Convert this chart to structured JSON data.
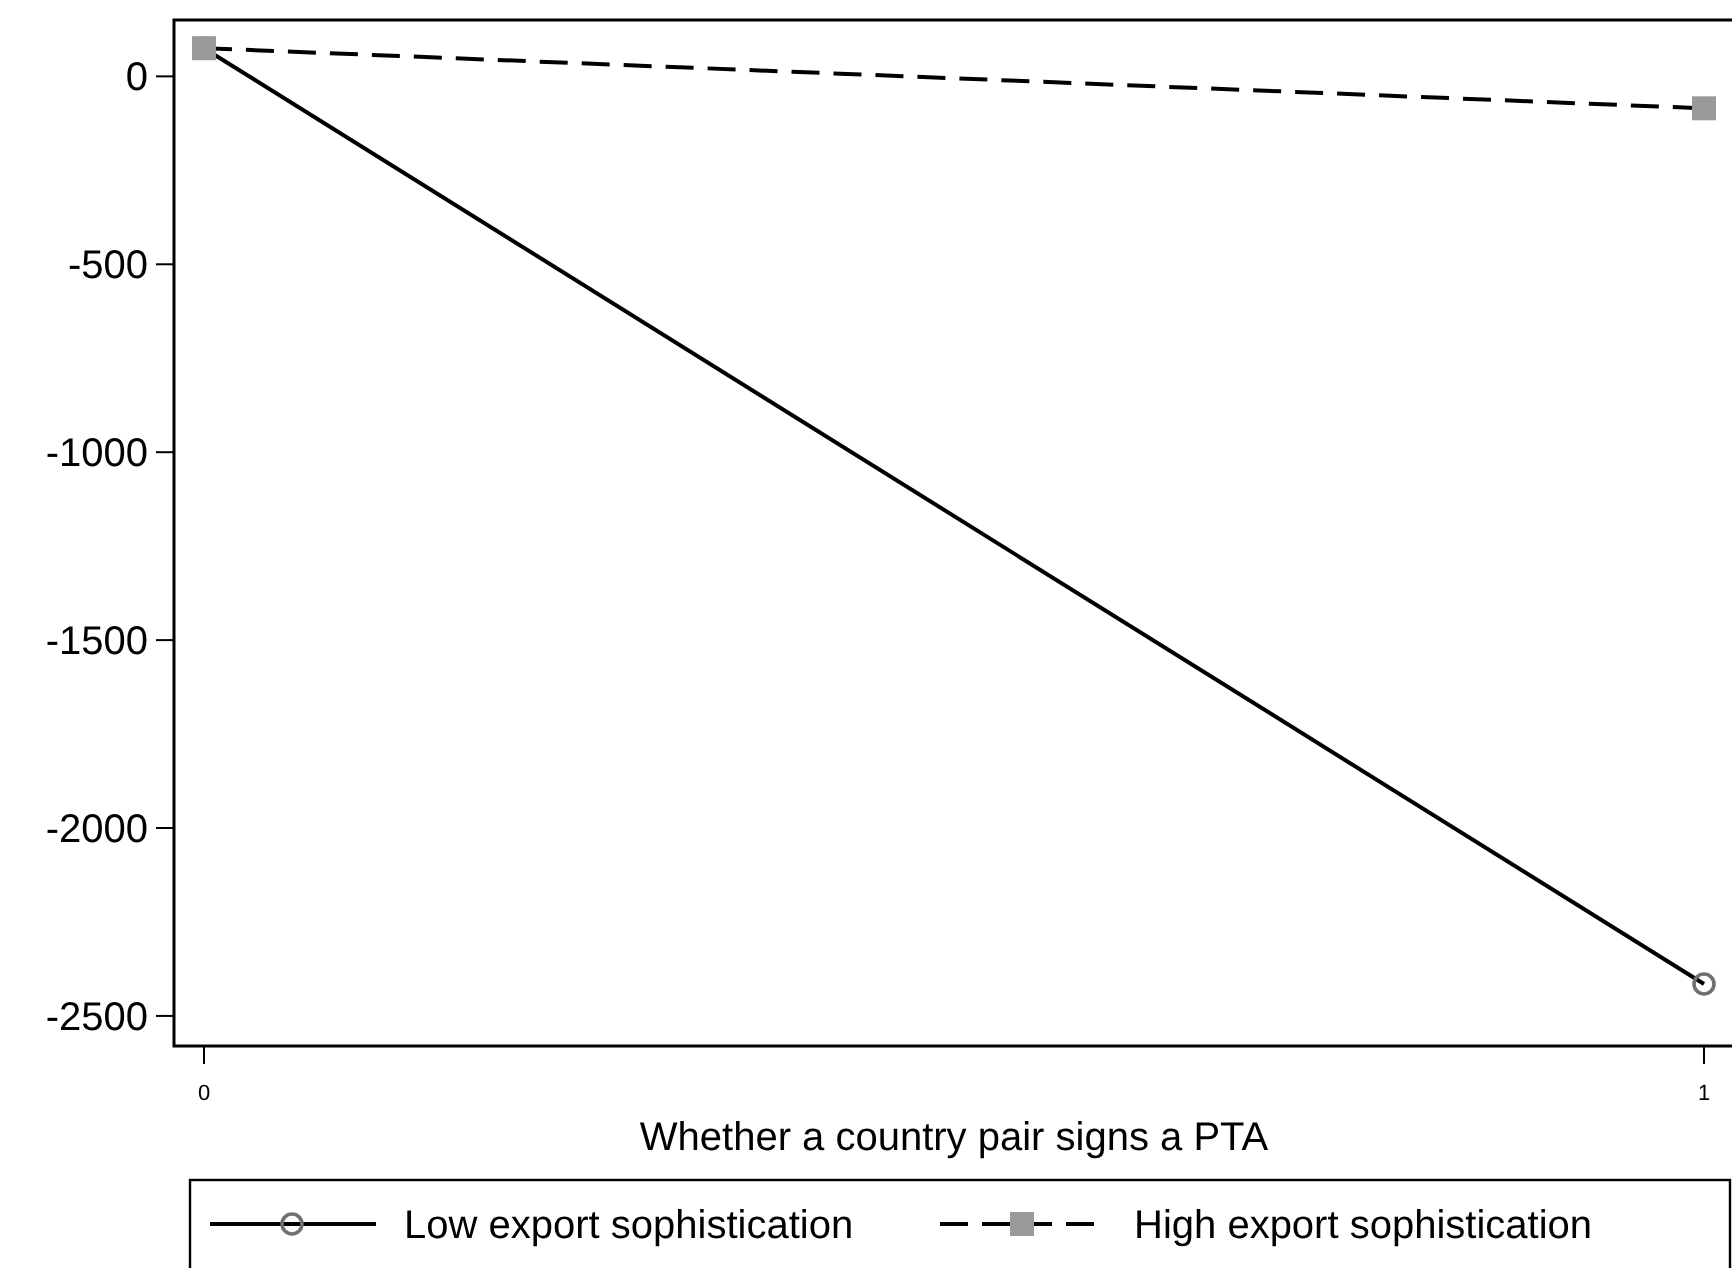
{
  "chart_data": {
    "type": "line",
    "xlabel": "Whether a country pair signs a PTA",
    "x": [
      0,
      1
    ],
    "series": [
      {
        "name": "Low export sophistication",
        "color": "#000000",
        "values": [
          75,
          -2415
        ],
        "marker": "circle",
        "line_style": "solid"
      },
      {
        "name": "High export sophistication",
        "color": "#000000",
        "values": [
          75,
          -85
        ],
        "marker": "square",
        "line_style": "dashed"
      }
    ],
    "xlim": [
      -0.02,
      1.02
    ],
    "xticks": [
      0,
      1
    ],
    "ylim": [
      -2580,
      150
    ],
    "yticks": [
      0,
      -500,
      -1000,
      -1500,
      -2000,
      -2500
    ],
    "grid": false,
    "legend": "bottom"
  }
}
